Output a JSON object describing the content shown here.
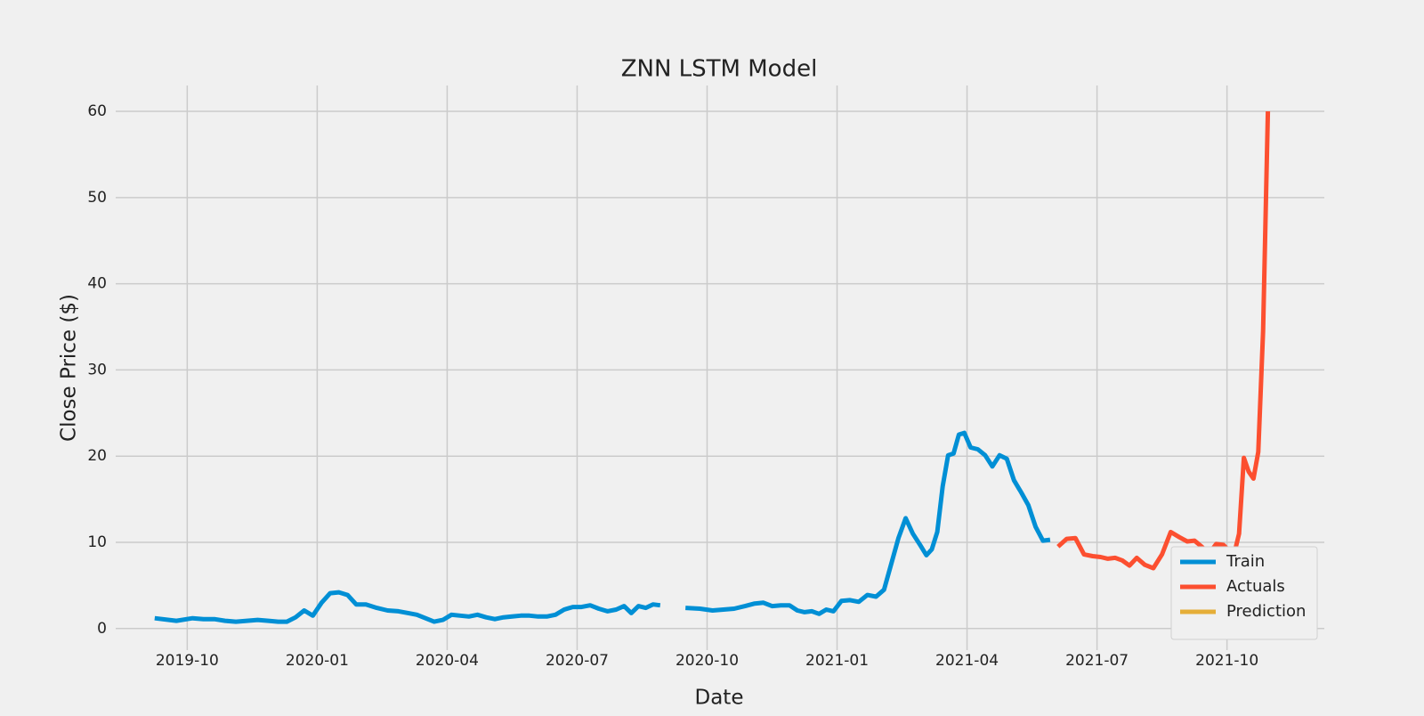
{
  "chart_data": {
    "type": "line",
    "title": "ZNN LSTM Model",
    "x_label": "Date",
    "y_label": "Close Price ($)",
    "xlim": [
      "2019-08",
      "2021-12"
    ],
    "xticks": [
      "2019-10",
      "2020-01",
      "2020-04",
      "2020-07",
      "2020-10",
      "2021-01",
      "2021-04",
      "2021-07",
      "2021-10"
    ],
    "ylim": [
      -2.5,
      63
    ],
    "yticks": [
      0,
      10,
      20,
      30,
      40,
      50,
      60
    ],
    "grid": true,
    "legend": "lower right",
    "series": [
      {
        "name": "Train",
        "color": "#008fd5",
        "x": [
          "2019-09",
          "2019-09",
          "2019-10",
          "2019-10",
          "2019-10",
          "2019-10",
          "2019-11",
          "2019-11",
          "2019-11",
          "2019-11",
          "2019-12",
          "2019-12",
          "2019-12",
          "2019-12",
          "2019-12",
          "2020-01",
          "2020-01",
          "2020-01",
          "2020-01",
          "2020-01",
          "2020-02",
          "2020-02",
          "2020-02",
          "2020-02",
          "2020-03",
          "2020-03",
          "2020-03",
          "2020-03",
          "2020-03",
          "2020-04",
          "2020-04",
          "2020-04",
          "2020-04",
          "2020-04",
          "2020-05",
          "2020-05",
          "2020-05",
          "2020-05",
          "2020-05",
          "2020-06",
          "2020-06",
          "2020-06",
          "2020-06",
          "2020-06",
          "2020-07",
          "2020-07",
          "2020-07",
          "2020-07",
          "2020-07",
          "2020-08",
          "2020-08",
          "2020-08",
          "2020-08",
          "2020-08",
          "2020-08",
          "2020-09",
          "2020-09",
          "2020-09",
          "2020-10",
          "2020-10",
          "2020-10",
          "2020-10",
          "2020-11",
          "2020-11",
          "2020-11",
          "2020-11",
          "2020-11",
          "2020-12",
          "2020-12",
          "2020-12",
          "2020-12",
          "2020-12",
          "2020-12",
          "2021-01",
          "2021-01",
          "2021-01",
          "2021-01",
          "2021-01",
          "2021-02",
          "2021-02",
          "2021-02",
          "2021-02",
          "2021-02",
          "2021-02",
          "2021-03",
          "2021-03",
          "2021-03",
          "2021-03",
          "2021-03",
          "2021-03",
          "2021-03",
          "2021-03",
          "2021-04",
          "2021-04",
          "2021-04",
          "2021-04",
          "2021-04",
          "2021-04",
          "2021-05",
          "2021-05",
          "2021-05",
          "2021-05",
          "2021-05",
          "2021-05"
        ],
        "values": [
          1.2,
          0.9,
          1.2,
          1.1,
          1.1,
          0.9,
          0.8,
          0.9,
          1.0,
          0.9,
          0.8,
          0.8,
          1.3,
          2.1,
          1.5,
          3.0,
          4.1,
          4.2,
          3.9,
          2.8,
          2.8,
          2.4,
          2.1,
          2.0,
          1.8,
          1.6,
          1.2,
          0.8,
          1.0,
          1.6,
          1.5,
          1.4,
          1.6,
          1.3,
          1.1,
          1.3,
          1.4,
          1.5,
          1.5,
          1.4,
          1.4,
          1.6,
          2.2,
          2.5,
          2.5,
          2.7,
          2.3,
          2.0,
          2.2,
          2.6,
          1.8,
          2.6,
          2.4,
          2.8,
          2.7,
          null,
          2.4,
          2.3,
          2.1,
          2.2,
          2.3,
          2.6,
          2.9,
          3.0,
          2.6,
          2.7,
          2.7,
          2.1,
          1.9,
          2.0,
          1.7,
          2.2,
          2.0,
          3.2,
          3.3,
          3.1,
          3.9,
          3.7,
          4.5,
          7.5,
          10.5,
          12.8,
          11.0,
          9.7,
          8.5,
          9.2,
          11.2,
          16.5,
          20.1,
          20.3,
          22.5,
          22.7,
          21.0,
          20.8,
          20.1,
          18.8,
          20.1,
          19.7,
          17.2,
          15.8,
          14.3,
          11.8,
          10.2,
          10.3
        ]
      },
      {
        "name": "Actuals",
        "color": "#fc4f30",
        "x": [
          "2021-06",
          "2021-06",
          "2021-06",
          "2021-06",
          "2021-06",
          "2021-07",
          "2021-07",
          "2021-07",
          "2021-07",
          "2021-07",
          "2021-07",
          "2021-08",
          "2021-08",
          "2021-08",
          "2021-08",
          "2021-08",
          "2021-09",
          "2021-09",
          "2021-09",
          "2021-09",
          "2021-09",
          "2021-09",
          "2021-10",
          "2021-10",
          "2021-10",
          "2021-10",
          "2021-10",
          "2021-10",
          "2021-10",
          "2021-10",
          "2021-10"
        ],
        "values": [
          9.5,
          10.4,
          10.5,
          8.6,
          8.4,
          8.3,
          8.1,
          8.2,
          7.9,
          7.3,
          8.2,
          7.4,
          7.0,
          8.6,
          11.2,
          10.6,
          10.1,
          10.2,
          9.5,
          8.7,
          9.8,
          9.7,
          9.0,
          8.7,
          11.0,
          19.8,
          18.2,
          17.4,
          20.5,
          34.5,
          60.0
        ]
      },
      {
        "name": "Prediction",
        "color": "#e5ae38",
        "x": [],
        "values": []
      }
    ]
  }
}
